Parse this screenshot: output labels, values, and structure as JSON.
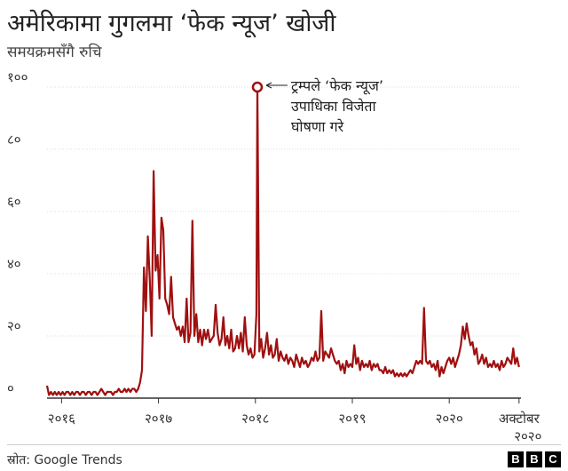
{
  "title": "अमेरिकामा गुगलमा  ‘फेक न्यूज’ खोजी",
  "subtitle": "समयक्रमसँगै रुचि",
  "source": "स्रोत: Google Trends",
  "brand": [
    "B",
    "B",
    "C"
  ],
  "colors": {
    "line": "#a01010",
    "grid": "#dddddd",
    "axis": "#333333"
  },
  "chart_data": {
    "type": "line",
    "title": "अमेरिकामा गुगलमा  ‘फेक न्यूज’ खोजी",
    "subtitle": "समयक्रमसँगै रुचि",
    "xlabel": "",
    "ylabel": "",
    "xlim": [
      2015.85,
      2020.74
    ],
    "ylim": [
      0,
      100
    ],
    "yticks": [
      0,
      20,
      40,
      60,
      80,
      100
    ],
    "ytick_labels": [
      "०",
      "२०",
      "४०",
      "६०",
      "८०",
      "१००"
    ],
    "xticks": [
      {
        "value": 2016,
        "label": "२०१६",
        "label2": ""
      },
      {
        "value": 2017,
        "label": "२०१७",
        "label2": ""
      },
      {
        "value": 2018,
        "label": "२०१८",
        "label2": ""
      },
      {
        "value": 2019,
        "label": "२०१९",
        "label2": ""
      },
      {
        "value": 2020,
        "label": "२०२०",
        "label2": ""
      },
      {
        "value": 2020.72,
        "label": "अक्टोबर",
        "label2": "२०२०"
      }
    ],
    "grid": "horizontal",
    "annotation": {
      "x": 2018.02,
      "y": 100,
      "lines": [
        "ट्रम्पले ‘फेक न्यूज’",
        "उपाधिका विजेता",
        "घोषणा गरे"
      ]
    },
    "series": [
      {
        "points": [
          [
            2015.85,
            4
          ],
          [
            2015.87,
            1
          ],
          [
            2015.89,
            2
          ],
          [
            2015.91,
            1
          ],
          [
            2015.93,
            2
          ],
          [
            2015.95,
            1
          ],
          [
            2015.97,
            2
          ],
          [
            2015.99,
            1
          ],
          [
            2016.01,
            2
          ],
          [
            2016.03,
            1
          ],
          [
            2016.05,
            2
          ],
          [
            2016.07,
            2
          ],
          [
            2016.09,
            1
          ],
          [
            2016.11,
            2
          ],
          [
            2016.13,
            1
          ],
          [
            2016.15,
            2
          ],
          [
            2016.17,
            2
          ],
          [
            2016.19,
            1
          ],
          [
            2016.21,
            2
          ],
          [
            2016.23,
            2
          ],
          [
            2016.25,
            1
          ],
          [
            2016.27,
            2
          ],
          [
            2016.29,
            2
          ],
          [
            2016.31,
            1
          ],
          [
            2016.33,
            2
          ],
          [
            2016.35,
            2
          ],
          [
            2016.37,
            1
          ],
          [
            2016.39,
            2
          ],
          [
            2016.41,
            3
          ],
          [
            2016.43,
            2
          ],
          [
            2016.45,
            1
          ],
          [
            2016.47,
            2
          ],
          [
            2016.49,
            2
          ],
          [
            2016.51,
            2
          ],
          [
            2016.53,
            1
          ],
          [
            2016.55,
            2
          ],
          [
            2016.57,
            2
          ],
          [
            2016.59,
            3
          ],
          [
            2016.61,
            2
          ],
          [
            2016.63,
            2
          ],
          [
            2016.65,
            3
          ],
          [
            2016.67,
            2
          ],
          [
            2016.69,
            3
          ],
          [
            2016.71,
            2
          ],
          [
            2016.73,
            3
          ],
          [
            2016.75,
            3
          ],
          [
            2016.77,
            2
          ],
          [
            2016.79,
            3
          ],
          [
            2016.81,
            5
          ],
          [
            2016.83,
            9
          ],
          [
            2016.85,
            42
          ],
          [
            2016.87,
            28
          ],
          [
            2016.89,
            52
          ],
          [
            2016.91,
            38
          ],
          [
            2016.93,
            20
          ],
          [
            2016.95,
            73
          ],
          [
            2016.97,
            41
          ],
          [
            2016.99,
            46
          ],
          [
            2017.01,
            32
          ],
          [
            2017.03,
            58
          ],
          [
            2017.05,
            54
          ],
          [
            2017.07,
            32
          ],
          [
            2017.09,
            30
          ],
          [
            2017.11,
            27
          ],
          [
            2017.13,
            39
          ],
          [
            2017.15,
            26
          ],
          [
            2017.17,
            24
          ],
          [
            2017.19,
            22
          ],
          [
            2017.21,
            23
          ],
          [
            2017.23,
            20
          ],
          [
            2017.25,
            23
          ],
          [
            2017.27,
            18
          ],
          [
            2017.29,
            32
          ],
          [
            2017.31,
            18
          ],
          [
            2017.33,
            21
          ],
          [
            2017.35,
            57
          ],
          [
            2017.37,
            20
          ],
          [
            2017.39,
            27
          ],
          [
            2017.41,
            18
          ],
          [
            2017.43,
            22
          ],
          [
            2017.45,
            17
          ],
          [
            2017.47,
            22
          ],
          [
            2017.49,
            19
          ],
          [
            2017.51,
            22
          ],
          [
            2017.53,
            18
          ],
          [
            2017.55,
            19
          ],
          [
            2017.57,
            20
          ],
          [
            2017.59,
            30
          ],
          [
            2017.61,
            21
          ],
          [
            2017.63,
            17
          ],
          [
            2017.65,
            19
          ],
          [
            2017.67,
            26
          ],
          [
            2017.69,
            17
          ],
          [
            2017.71,
            20
          ],
          [
            2017.73,
            16
          ],
          [
            2017.75,
            22
          ],
          [
            2017.77,
            15
          ],
          [
            2017.79,
            16
          ],
          [
            2017.81,
            20
          ],
          [
            2017.83,
            16
          ],
          [
            2017.85,
            21
          ],
          [
            2017.87,
            15
          ],
          [
            2017.89,
            26
          ],
          [
            2017.91,
            17
          ],
          [
            2017.93,
            14
          ],
          [
            2017.95,
            16
          ],
          [
            2017.97,
            13
          ],
          [
            2017.99,
            14
          ],
          [
            2018.01,
            27
          ],
          [
            2018.02,
            100
          ],
          [
            2018.04,
            15
          ],
          [
            2018.06,
            19
          ],
          [
            2018.08,
            13
          ],
          [
            2018.1,
            16
          ],
          [
            2018.12,
            21
          ],
          [
            2018.14,
            14
          ],
          [
            2018.16,
            17
          ],
          [
            2018.18,
            13
          ],
          [
            2018.2,
            14
          ],
          [
            2018.22,
            19
          ],
          [
            2018.24,
            12
          ],
          [
            2018.26,
            15
          ],
          [
            2018.28,
            13
          ],
          [
            2018.3,
            12
          ],
          [
            2018.32,
            14
          ],
          [
            2018.34,
            11
          ],
          [
            2018.36,
            13
          ],
          [
            2018.38,
            12
          ],
          [
            2018.4,
            10
          ],
          [
            2018.42,
            14
          ],
          [
            2018.44,
            12
          ],
          [
            2018.46,
            10
          ],
          [
            2018.48,
            13
          ],
          [
            2018.5,
            11
          ],
          [
            2018.52,
            12
          ],
          [
            2018.54,
            10
          ],
          [
            2018.56,
            11
          ],
          [
            2018.58,
            13
          ],
          [
            2018.6,
            12
          ],
          [
            2018.62,
            15
          ],
          [
            2018.64,
            12
          ],
          [
            2018.66,
            13
          ],
          [
            2018.68,
            28
          ],
          [
            2018.7,
            12
          ],
          [
            2018.72,
            15
          ],
          [
            2018.74,
            14
          ],
          [
            2018.76,
            13
          ],
          [
            2018.78,
            16
          ],
          [
            2018.8,
            14
          ],
          [
            2018.82,
            12
          ],
          [
            2018.84,
            11
          ],
          [
            2018.86,
            12
          ],
          [
            2018.88,
            9
          ],
          [
            2018.9,
            11
          ],
          [
            2018.92,
            8
          ],
          [
            2018.94,
            12
          ],
          [
            2018.96,
            10
          ],
          [
            2018.98,
            11
          ],
          [
            2019.0,
            10
          ],
          [
            2019.02,
            17
          ],
          [
            2019.04,
            11
          ],
          [
            2019.06,
            13
          ],
          [
            2019.08,
            9
          ],
          [
            2019.1,
            12
          ],
          [
            2019.12,
            10
          ],
          [
            2019.14,
            11
          ],
          [
            2019.16,
            10
          ],
          [
            2019.18,
            12
          ],
          [
            2019.2,
            9
          ],
          [
            2019.22,
            11
          ],
          [
            2019.24,
            10
          ],
          [
            2019.26,
            11
          ],
          [
            2019.28,
            9
          ],
          [
            2019.3,
            9
          ],
          [
            2019.32,
            8
          ],
          [
            2019.34,
            10
          ],
          [
            2019.36,
            8
          ],
          [
            2019.38,
            9
          ],
          [
            2019.4,
            8
          ],
          [
            2019.42,
            9
          ],
          [
            2019.44,
            7
          ],
          [
            2019.46,
            8
          ],
          [
            2019.48,
            7
          ],
          [
            2019.5,
            8
          ],
          [
            2019.52,
            7
          ],
          [
            2019.54,
            8
          ],
          [
            2019.56,
            7
          ],
          [
            2019.58,
            8
          ],
          [
            2019.6,
            9
          ],
          [
            2019.62,
            8
          ],
          [
            2019.64,
            10
          ],
          [
            2019.66,
            12
          ],
          [
            2019.68,
            11
          ],
          [
            2019.7,
            12
          ],
          [
            2019.72,
            11
          ],
          [
            2019.74,
            29
          ],
          [
            2019.76,
            12
          ],
          [
            2019.78,
            11
          ],
          [
            2019.8,
            12
          ],
          [
            2019.82,
            10
          ],
          [
            2019.84,
            11
          ],
          [
            2019.86,
            9
          ],
          [
            2019.88,
            12
          ],
          [
            2019.9,
            7
          ],
          [
            2019.92,
            10
          ],
          [
            2019.94,
            8
          ],
          [
            2019.96,
            10
          ],
          [
            2019.98,
            12
          ],
          [
            2020.0,
            13
          ],
          [
            2020.02,
            11
          ],
          [
            2020.04,
            13
          ],
          [
            2020.06,
            10
          ],
          [
            2020.08,
            12
          ],
          [
            2020.1,
            14
          ],
          [
            2020.12,
            17
          ],
          [
            2020.14,
            23
          ],
          [
            2020.16,
            19
          ],
          [
            2020.18,
            24
          ],
          [
            2020.2,
            20
          ],
          [
            2020.22,
            17
          ],
          [
            2020.24,
            18
          ],
          [
            2020.26,
            14
          ],
          [
            2020.28,
            16
          ],
          [
            2020.3,
            11
          ],
          [
            2020.32,
            12
          ],
          [
            2020.34,
            14
          ],
          [
            2020.36,
            11
          ],
          [
            2020.38,
            13
          ],
          [
            2020.4,
            10
          ],
          [
            2020.42,
            11
          ],
          [
            2020.44,
            10
          ],
          [
            2020.46,
            12
          ],
          [
            2020.48,
            10
          ],
          [
            2020.5,
            11
          ],
          [
            2020.52,
            9
          ],
          [
            2020.54,
            12
          ],
          [
            2020.56,
            10
          ],
          [
            2020.58,
            11
          ],
          [
            2020.6,
            13
          ],
          [
            2020.62,
            12
          ],
          [
            2020.64,
            11
          ],
          [
            2020.66,
            16
          ],
          [
            2020.68,
            11
          ],
          [
            2020.7,
            13
          ],
          [
            2020.72,
            10
          ]
        ]
      }
    ]
  }
}
